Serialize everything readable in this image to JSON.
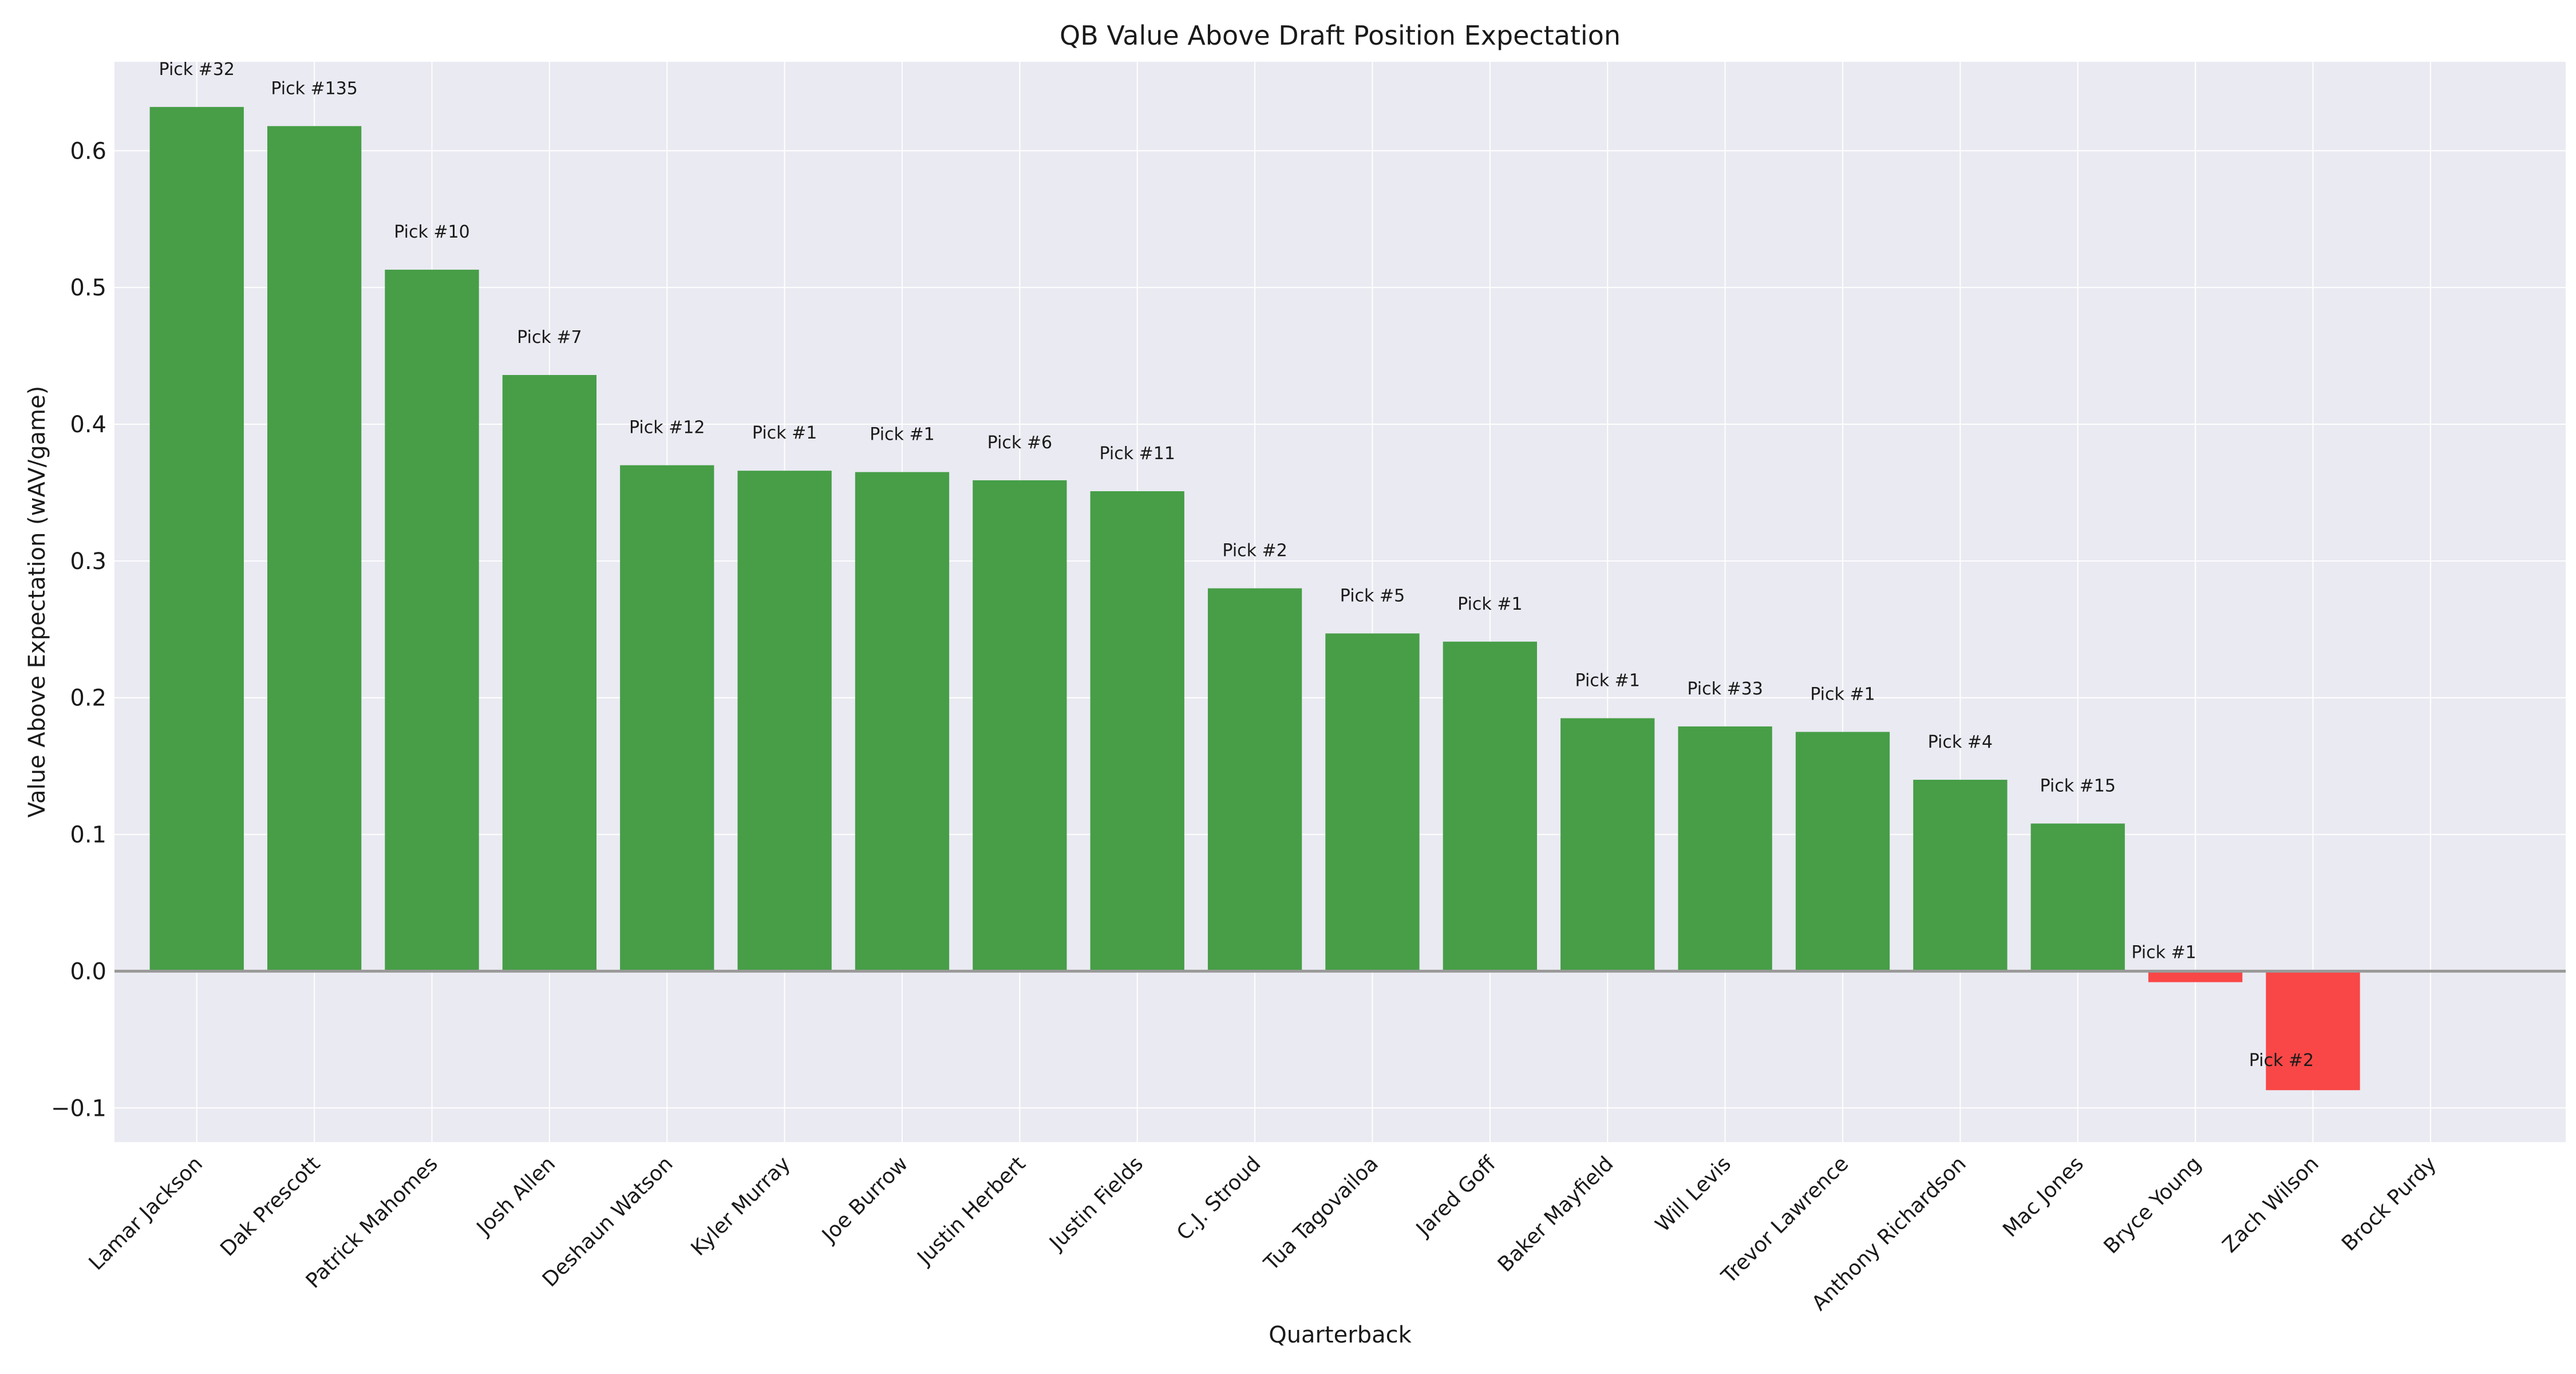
{
  "chart_data": {
    "type": "bar",
    "title": "QB Value Above Draft Position Expectation",
    "xlabel": "Quarterback",
    "ylabel": "Value Above Expectation (wAV/game)",
    "ylim": [
      -0.125,
      0.665
    ],
    "yticks": [
      -0.1,
      0.0,
      0.1,
      0.2,
      0.3,
      0.4,
      0.5,
      0.6
    ],
    "ytick_labels": [
      "−0.1",
      "0.0",
      "0.1",
      "0.2",
      "0.3",
      "0.4",
      "0.5",
      "0.6"
    ],
    "grid": true,
    "colors": {
      "positive": "#479e47",
      "negative": "#f94747",
      "background": "#eaeaf2",
      "grid": "#ffffff",
      "zero_line": "#999999"
    },
    "categories": [
      "Lamar Jackson",
      "Dak Prescott",
      "Patrick Mahomes",
      "Josh Allen",
      "Deshaun Watson",
      "Kyler Murray",
      "Joe Burrow",
      "Justin Herbert",
      "Justin Fields",
      "C.J. Stroud",
      "Tua Tagovailoa",
      "Jared Goff",
      "Baker Mayfield",
      "Will Levis",
      "Trevor Lawrence",
      "Anthony Richardson",
      "Mac Jones",
      "Bryce Young",
      "Zach Wilson",
      "Brock Purdy"
    ],
    "values": [
      0.632,
      0.618,
      0.513,
      0.436,
      0.37,
      0.366,
      0.365,
      0.359,
      0.351,
      0.28,
      0.247,
      0.241,
      0.185,
      0.179,
      0.175,
      0.14,
      0.108,
      -0.008,
      -0.087,
      null
    ],
    "pick_labels": [
      "Pick #32",
      "Pick #135",
      "Pick #10",
      "Pick #7",
      "Pick #12",
      "Pick #1",
      "Pick #1",
      "Pick #6",
      "Pick #11",
      "Pick #2",
      "Pick #5",
      "Pick #1",
      "Pick #1",
      "Pick #33",
      "Pick #1",
      "Pick #4",
      "Pick #15",
      "Pick #1",
      "Pick #2",
      ""
    ]
  }
}
